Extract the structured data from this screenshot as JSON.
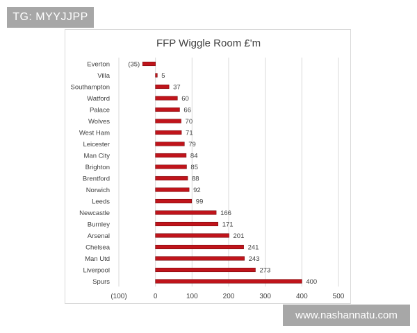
{
  "watermark_top": "TG: MYYJJPP",
  "watermark_bottom": "www.nashannatu.com",
  "colors": {
    "bar_fill": "#c0141b",
    "bar_stroke": "#7a0a0e",
    "grid": "#d9d9d9",
    "text": "#404040"
  },
  "chart_data": {
    "type": "bar",
    "orientation": "horizontal",
    "title": "FFP Wiggle Room £'m",
    "xlabel": "",
    "ylabel": "",
    "xlim": [
      -100,
      500
    ],
    "xticks": [
      -100,
      0,
      100,
      200,
      300,
      400,
      500
    ],
    "xtick_labels": [
      "(100)",
      "0",
      "100",
      "200",
      "300",
      "400",
      "500"
    ],
    "grid": "vertical",
    "categories": [
      "Everton",
      "Villa",
      "Southampton",
      "Watford",
      "Palace",
      "Wolves",
      "West Ham",
      "Leicester",
      "Man City",
      "Brighton",
      "Brentford",
      "Norwich",
      "Leeds",
      "Newcastle",
      "Burnley",
      "Arsenal",
      "Chelsea",
      "Man Utd",
      "Liverpool",
      "Spurs"
    ],
    "values": [
      -35,
      5,
      37,
      60,
      66,
      70,
      71,
      79,
      84,
      85,
      88,
      92,
      99,
      166,
      171,
      201,
      241,
      243,
      273,
      400
    ],
    "value_labels": [
      "(35)",
      "5",
      "37",
      "60",
      "66",
      "70",
      "71",
      "79",
      "84",
      "85",
      "88",
      "92",
      "99",
      "166",
      "171",
      "201",
      "241",
      "243",
      "273",
      "400"
    ]
  }
}
